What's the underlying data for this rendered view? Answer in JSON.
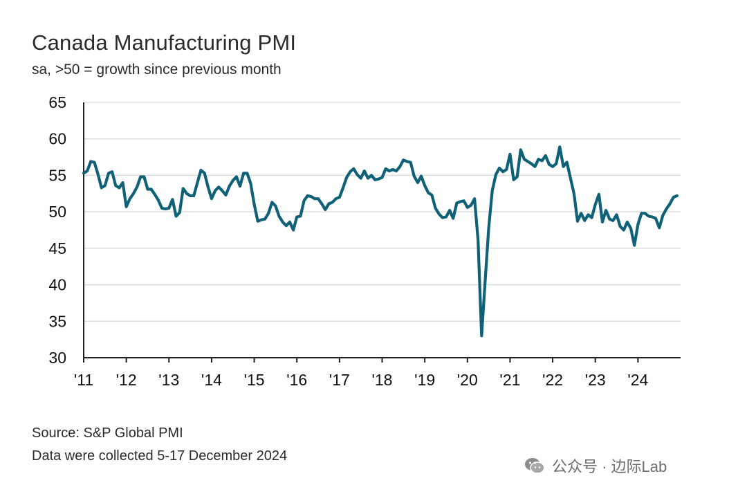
{
  "title": "Canada Manufacturing PMI",
  "subtitle": "sa, >50 = growth since previous month",
  "source_line1": "Source: S&P Global PMI",
  "source_line2": "Data were collected 5-17 December 2024",
  "watermark": "公众号 · 边际Lab",
  "colors": {
    "line": "#0f6178",
    "grid": "#d7d7d7",
    "axis": "#222222"
  },
  "chart_data": {
    "type": "line",
    "title": "Canada Manufacturing PMI",
    "subtitle": "sa, >50 = growth since previous month",
    "xlabel": "",
    "ylabel": "",
    "ylim": [
      30,
      65
    ],
    "yticks": [
      30,
      35,
      40,
      45,
      50,
      55,
      60,
      65
    ],
    "xlim": [
      2011.0,
      2025.0
    ],
    "x_ticks": [
      {
        "x": 2011,
        "label": "'11"
      },
      {
        "x": 2012,
        "label": "'12"
      },
      {
        "x": 2013,
        "label": "'13"
      },
      {
        "x": 2014,
        "label": "'14"
      },
      {
        "x": 2015,
        "label": "'15"
      },
      {
        "x": 2016,
        "label": "'16"
      },
      {
        "x": 2017,
        "label": "'17"
      },
      {
        "x": 2018,
        "label": "'18"
      },
      {
        "x": 2019,
        "label": "'19"
      },
      {
        "x": 2020,
        "label": "'20"
      },
      {
        "x": 2021,
        "label": "'21"
      },
      {
        "x": 2022,
        "label": "'22"
      },
      {
        "x": 2023,
        "label": "'23"
      },
      {
        "x": 2024,
        "label": "'24"
      }
    ],
    "grid": "horizontal",
    "series": [
      {
        "name": "Canada Manufacturing PMI",
        "start": "2011-01",
        "values": [
          55.3,
          55.6,
          56.9,
          56.8,
          55.2,
          53.3,
          53.6,
          55.3,
          55.5,
          53.6,
          53.3,
          54.0,
          50.7,
          51.8,
          52.5,
          53.4,
          54.8,
          54.8,
          53.1,
          53.1,
          52.4,
          51.6,
          50.5,
          50.4,
          50.5,
          51.7,
          49.4,
          49.9,
          53.2,
          52.5,
          52.2,
          52.2,
          54.0,
          55.7,
          55.3,
          53.4,
          51.8,
          52.9,
          53.4,
          52.9,
          52.3,
          53.5,
          54.3,
          54.8,
          53.5,
          55.3,
          55.3,
          53.9,
          51.0,
          48.7,
          48.9,
          49.0,
          49.8,
          51.3,
          50.8,
          49.4,
          48.6,
          48.1,
          48.6,
          47.5,
          49.3,
          49.4,
          51.5,
          52.2,
          52.1,
          51.8,
          51.8,
          51.1,
          50.3,
          51.1,
          51.3,
          51.8,
          52.0,
          53.3,
          54.7,
          55.5,
          55.9,
          55.1,
          54.6,
          55.6,
          54.6,
          55.0,
          54.4,
          54.5,
          54.7,
          55.9,
          55.6,
          55.8,
          55.6,
          56.2,
          57.1,
          56.9,
          56.8,
          54.9,
          54.0,
          54.9,
          53.6,
          52.6,
          52.3,
          50.5,
          49.7,
          49.2,
          49.3,
          50.2,
          49.1,
          51.2,
          51.4,
          51.5,
          50.6,
          50.9,
          51.8,
          46.1,
          33.0,
          40.6,
          47.8,
          52.9,
          55.1,
          56.0,
          55.5,
          55.8,
          57.9,
          54.4,
          54.8,
          58.5,
          57.2,
          56.9,
          56.6,
          56.2,
          57.2,
          57.0,
          57.7,
          56.5,
          56.2,
          56.6,
          58.9,
          56.2,
          56.8,
          54.6,
          52.5,
          48.7,
          49.8,
          48.8,
          49.6,
          49.2,
          51.0,
          52.4,
          48.6,
          50.2,
          49.0,
          48.8,
          49.6,
          48.0,
          47.5,
          48.6,
          47.7,
          45.4,
          48.3,
          49.8,
          49.8,
          49.4,
          49.3,
          49.1,
          47.8,
          49.5,
          50.4,
          51.1,
          52.0,
          52.2
        ]
      }
    ]
  }
}
